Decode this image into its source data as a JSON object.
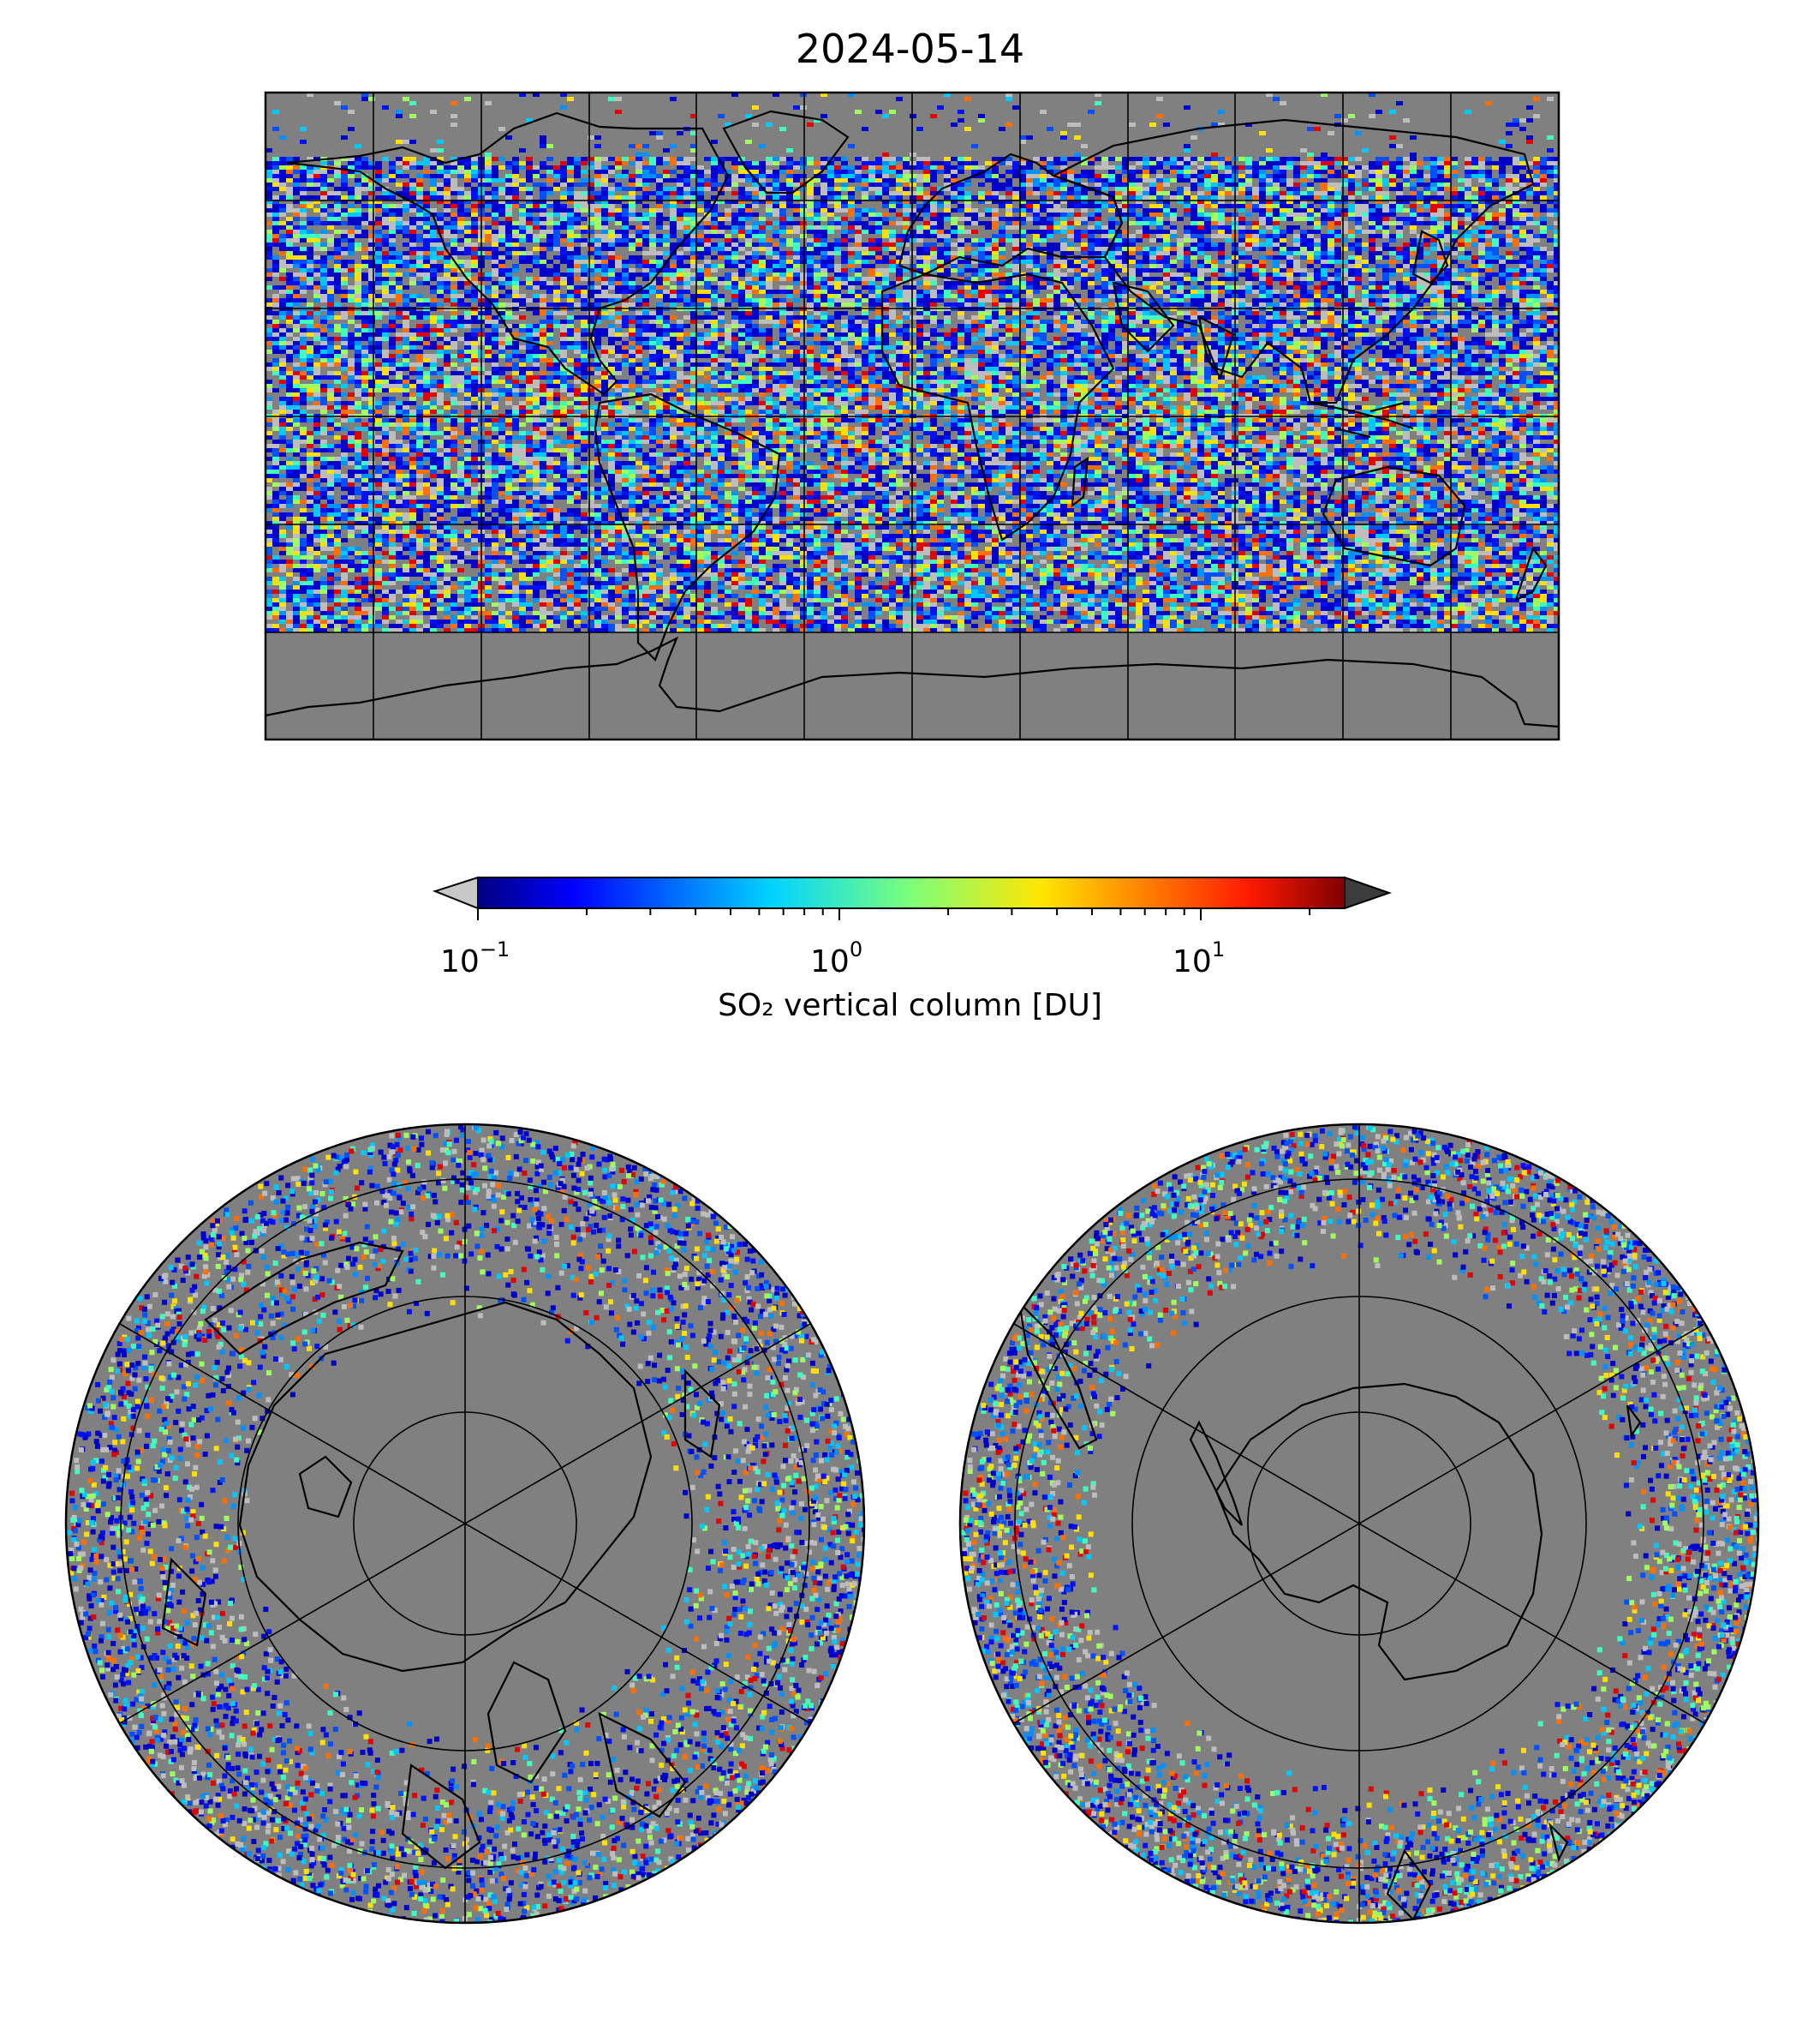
{
  "figure": {
    "title": "2024-05-14"
  },
  "colorbar": {
    "label": "SO₂ vertical column [DU]",
    "scale": "log",
    "range_du": [
      0.1,
      25
    ],
    "ticks": [
      {
        "base": "10",
        "exp": "−1",
        "value": 0.1
      },
      {
        "base": "10",
        "exp": "0",
        "value": 1
      },
      {
        "base": "10",
        "exp": "1",
        "value": 10
      }
    ],
    "colormap": "jet",
    "under_color": "#c8c8c8",
    "over_color": "#3c3c3c"
  },
  "maps": [
    {
      "projection": "plate-carree-global",
      "background": "#808080"
    },
    {
      "projection": "north-polar-stereographic",
      "background": "#808080"
    },
    {
      "projection": "south-polar-stereographic",
      "background": "#808080"
    }
  ]
}
